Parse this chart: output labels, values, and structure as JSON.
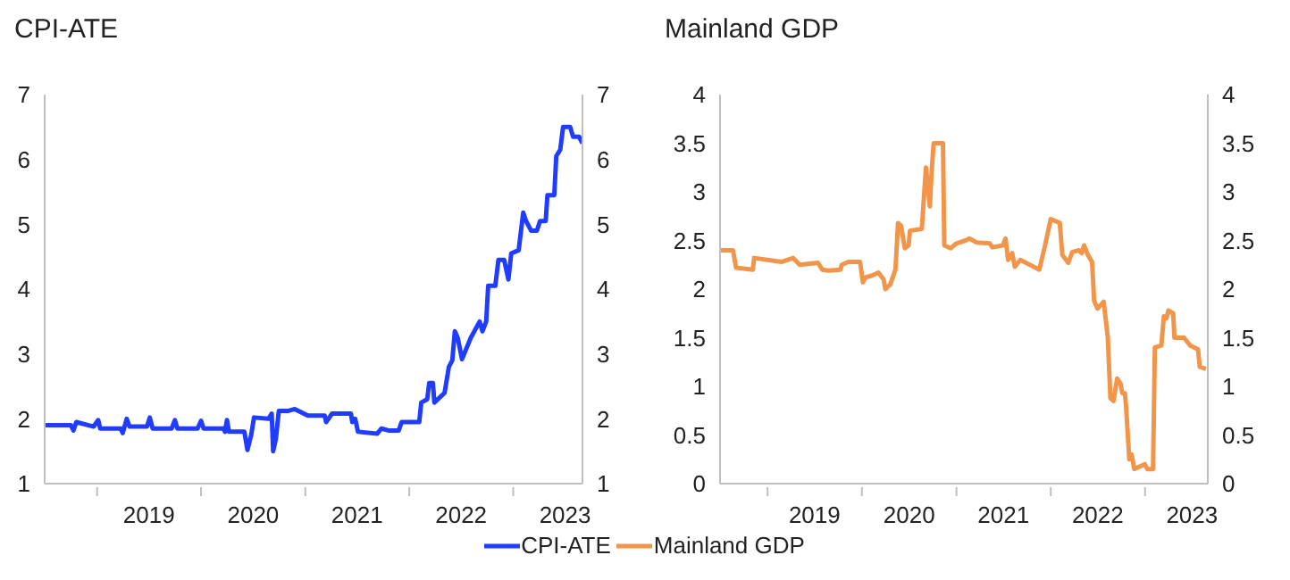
{
  "chart_data": [
    {
      "type": "line",
      "title": "CPI-ATE",
      "legend": "bottom",
      "xlim": [
        "2018-07-01",
        "2023-09-01"
      ],
      "xticks": [
        {
          "value": "2019-01-01",
          "label": null
        },
        {
          "value": "2019-07-02",
          "label": "2019"
        },
        {
          "value": "2020-01-01",
          "label": null
        },
        {
          "value": "2020-07-02",
          "label": "2020"
        },
        {
          "value": "2021-01-01",
          "label": null
        },
        {
          "value": "2021-07-02",
          "label": "2021"
        },
        {
          "value": "2022-01-01",
          "label": null
        },
        {
          "value": "2022-07-02",
          "label": "2022"
        },
        {
          "value": "2023-01-01",
          "label": null
        },
        {
          "value": "2023-07-02",
          "label": "2023"
        }
      ],
      "ylim": [
        1,
        7
      ],
      "yticks": [
        1,
        2,
        3,
        4,
        5,
        6,
        7
      ],
      "y2lim": [
        1,
        7
      ],
      "y2ticks": [
        1,
        2,
        3,
        4,
        5,
        6,
        7
      ],
      "grid": false,
      "x": [
        "2018-07-01",
        "2018-10-01",
        "2018-10-10",
        "2018-10-20",
        "2018-12-20",
        "2019-01-05",
        "2019-01-12",
        "2019-03-25",
        "2019-04-01",
        "2019-04-15",
        "2019-04-25",
        "2019-06-25",
        "2019-07-05",
        "2019-07-15",
        "2019-09-20",
        "2019-10-01",
        "2019-10-10",
        "2019-12-20",
        "2020-01-01",
        "2020-01-10",
        "2020-03-20",
        "2020-03-25",
        "2020-04-01",
        "2020-04-08",
        "2020-06-01",
        "2020-06-12",
        "2020-06-25",
        "2020-07-05",
        "2020-08-25",
        "2020-09-05",
        "2020-09-10",
        "2020-09-20",
        "2020-09-30",
        "2020-10-31",
        "2020-11-25",
        "2021-01-10",
        "2021-03-10",
        "2021-03-15",
        "2021-04-05",
        "2021-06-10",
        "2021-06-15",
        "2021-06-25",
        "2021-07-05",
        "2021-09-10",
        "2021-09-25",
        "2021-10-20",
        "2021-11-25",
        "2021-12-05",
        "2022-02-05",
        "2022-02-12",
        "2022-03-05",
        "2022-03-12",
        "2022-03-25",
        "2022-03-30",
        "2022-05-05",
        "2022-05-20",
        "2022-06-01",
        "2022-06-10",
        "2022-06-20",
        "2022-07-05",
        "2022-08-05",
        "2022-09-05",
        "2022-09-15",
        "2022-09-28",
        "2022-10-05",
        "2022-10-30",
        "2022-11-10",
        "2022-11-30",
        "2022-12-15",
        "2022-12-25",
        "2023-01-20",
        "2023-02-05",
        "2023-02-15",
        "2023-03-05",
        "2023-03-25",
        "2023-04-05",
        "2023-04-25",
        "2023-05-01",
        "2023-05-25",
        "2023-06-01",
        "2023-06-15",
        "2023-06-25",
        "2023-07-20",
        "2023-07-30",
        "2023-08-20",
        "2023-09-01"
      ],
      "series": [
        {
          "name": "CPI-ATE",
          "color": "#1f3cff",
          "values": [
            1.9,
            1.9,
            1.82,
            1.95,
            1.88,
            1.98,
            1.85,
            1.85,
            1.78,
            2.0,
            1.88,
            1.88,
            2.02,
            1.85,
            1.85,
            1.98,
            1.85,
            1.85,
            1.97,
            1.85,
            1.85,
            1.8,
            1.98,
            1.8,
            1.8,
            1.52,
            1.75,
            2.02,
            2.0,
            2.08,
            1.5,
            1.7,
            2.12,
            2.12,
            2.15,
            2.05,
            2.05,
            1.95,
            2.08,
            2.08,
            1.95,
            2.0,
            1.8,
            1.77,
            1.85,
            1.82,
            1.82,
            1.95,
            1.95,
            2.25,
            2.3,
            2.55,
            2.55,
            2.25,
            2.4,
            2.8,
            2.9,
            3.35,
            3.25,
            2.92,
            3.25,
            3.5,
            3.35,
            3.5,
            4.05,
            4.05,
            4.45,
            4.45,
            4.15,
            4.55,
            4.6,
            5.18,
            5.05,
            4.9,
            4.9,
            5.05,
            5.05,
            5.45,
            5.45,
            6.05,
            6.15,
            6.5,
            6.5,
            6.35,
            6.35,
            6.25
          ]
        }
      ]
    },
    {
      "type": "line",
      "title": "Mainland GDP",
      "legend": "bottom",
      "xlim": [
        "2018-07-01",
        "2023-09-01"
      ],
      "xticks": [
        {
          "value": "2019-01-01",
          "label": null
        },
        {
          "value": "2019-07-02",
          "label": "2019"
        },
        {
          "value": "2020-01-01",
          "label": null
        },
        {
          "value": "2020-07-02",
          "label": "2020"
        },
        {
          "value": "2021-01-01",
          "label": null
        },
        {
          "value": "2021-07-02",
          "label": "2021"
        },
        {
          "value": "2022-01-01",
          "label": null
        },
        {
          "value": "2022-07-02",
          "label": "2022"
        },
        {
          "value": "2023-01-01",
          "label": null
        },
        {
          "value": "2023-07-02",
          "label": "2023"
        }
      ],
      "ylim": [
        0,
        4
      ],
      "yticks": [
        0,
        0.5,
        1,
        1.5,
        2,
        2.5,
        3,
        3.5,
        4
      ],
      "y2lim": [
        0,
        4
      ],
      "y2ticks": [
        0,
        0.5,
        1,
        1.5,
        2,
        2.5,
        3,
        3.5,
        4
      ],
      "grid": false,
      "x": [
        "2018-07-01",
        "2018-08-20",
        "2018-09-01",
        "2018-11-05",
        "2018-11-10",
        "2019-02-25",
        "2019-04-10",
        "2019-05-05",
        "2019-07-15",
        "2019-08-01",
        "2019-08-25",
        "2019-10-10",
        "2019-10-15",
        "2019-11-10",
        "2019-12-25",
        "2020-01-05",
        "2020-01-15",
        "2020-02-10",
        "2020-03-05",
        "2020-03-25",
        "2020-04-01",
        "2020-04-20",
        "2020-05-10",
        "2020-05-20",
        "2020-06-01",
        "2020-06-15",
        "2020-06-30",
        "2020-07-05",
        "2020-08-20",
        "2020-09-05",
        "2020-09-20",
        "2020-09-28",
        "2020-10-05",
        "2020-11-10",
        "2020-11-15",
        "2020-12-10",
        "2021-01-01",
        "2021-02-05",
        "2021-02-20",
        "2021-03-20",
        "2021-05-10",
        "2021-05-20",
        "2021-06-30",
        "2021-07-10",
        "2021-07-20",
        "2021-08-05",
        "2021-08-15",
        "2021-09-05",
        "2021-11-18",
        "2021-12-10",
        "2022-01-01",
        "2022-02-05",
        "2022-02-15",
        "2022-03-10",
        "2022-03-25",
        "2022-04-20",
        "2022-05-01",
        "2022-05-10",
        "2022-05-25",
        "2022-06-10",
        "2022-06-18",
        "2022-07-01",
        "2022-07-18",
        "2022-07-25",
        "2022-08-10",
        "2022-08-20",
        "2022-09-01",
        "2022-09-15",
        "2022-09-28",
        "2022-10-05",
        "2022-10-15",
        "2022-10-20",
        "2022-11-01",
        "2022-11-10",
        "2022-11-20",
        "2022-12-31",
        "2023-01-10",
        "2023-02-01",
        "2023-02-08",
        "2023-03-05",
        "2023-03-15",
        "2023-03-25",
        "2023-04-01",
        "2023-04-20",
        "2023-04-25",
        "2023-06-01",
        "2023-06-25",
        "2023-07-25",
        "2023-08-01",
        "2023-08-25"
      ],
      "series": [
        {
          "name": "Mainland GDP",
          "color": "#f0954a",
          "values": [
            2.4,
            2.4,
            2.22,
            2.2,
            2.32,
            2.28,
            2.32,
            2.25,
            2.27,
            2.2,
            2.19,
            2.2,
            2.25,
            2.28,
            2.28,
            2.07,
            2.12,
            2.14,
            2.17,
            2.1,
            2.0,
            2.05,
            2.2,
            2.68,
            2.65,
            2.42,
            2.45,
            2.6,
            2.62,
            3.25,
            2.85,
            3.25,
            3.5,
            3.5,
            2.45,
            2.42,
            2.47,
            2.5,
            2.52,
            2.48,
            2.47,
            2.43,
            2.45,
            2.52,
            2.3,
            2.37,
            2.23,
            2.3,
            2.2,
            2.45,
            2.72,
            2.68,
            2.35,
            2.27,
            2.38,
            2.4,
            2.37,
            2.45,
            2.35,
            2.28,
            1.88,
            1.8,
            1.85,
            1.87,
            1.5,
            0.88,
            0.85,
            1.08,
            1.03,
            0.93,
            0.93,
            0.78,
            0.25,
            0.3,
            0.15,
            0.2,
            0.15,
            0.15,
            1.4,
            1.42,
            1.72,
            1.7,
            1.78,
            1.75,
            1.5,
            1.5,
            1.42,
            1.38,
            1.2,
            1.18
          ]
        }
      ]
    }
  ]
}
